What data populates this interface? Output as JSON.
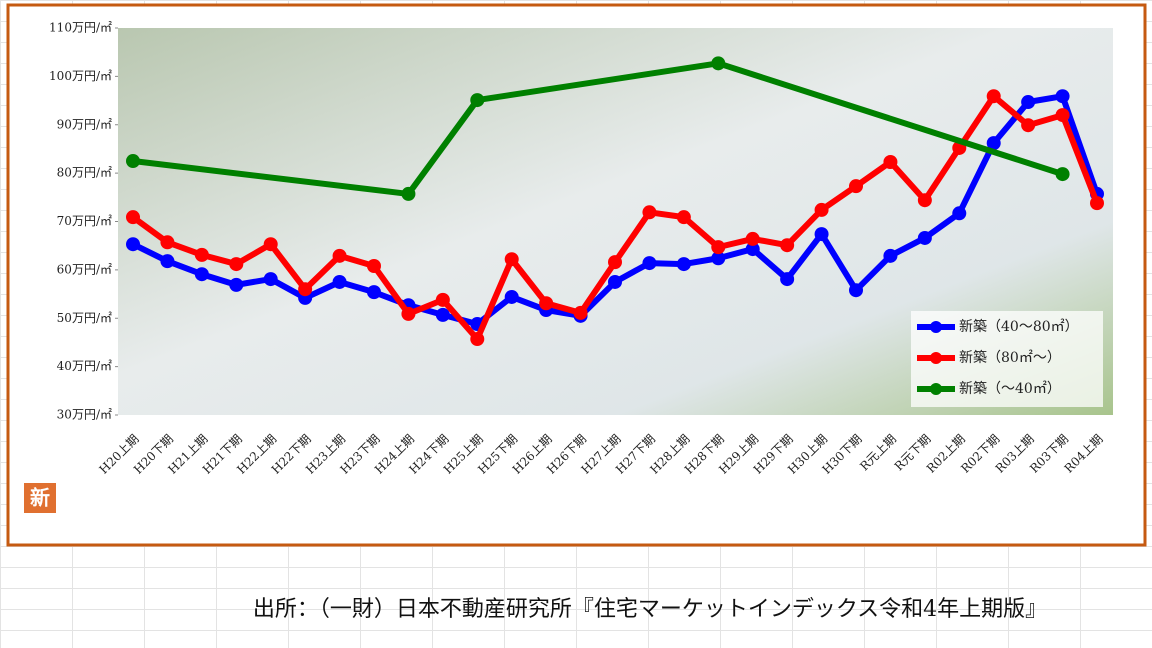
{
  "chart_data": {
    "type": "line",
    "categories": [
      "H20上期",
      "H20下期",
      "H21上期",
      "H21下期",
      "H22上期",
      "H22下期",
      "H23上期",
      "H23下期",
      "H24上期",
      "H24下期",
      "H25上期",
      "H25下期",
      "H26上期",
      "H26下期",
      "H27上期",
      "H27下期",
      "H28上期",
      "H28下期",
      "H29上期",
      "H29下期",
      "H30上期",
      "H30下期",
      "R元上期",
      "R元下期",
      "R02上期",
      "R02下期",
      "R03上期",
      "R03下期",
      "R04上期"
    ],
    "series": [
      {
        "name": "新築（40～80㎡）",
        "color": "#0000ff",
        "values": [
          65.3,
          61.8,
          59.1,
          56.9,
          58.1,
          54.2,
          57.5,
          55.4,
          52.7,
          50.7,
          48.8,
          54.4,
          51.7,
          50.5,
          57.5,
          61.4,
          61.2,
          62.4,
          64.3,
          58.1,
          67.4,
          55.8,
          62.9,
          66.6,
          71.7,
          86.2,
          94.7,
          95.9,
          75.7
        ]
      },
      {
        "name": "新築（80㎡～）",
        "color": "#ff0000",
        "values": [
          70.9,
          65.7,
          63.1,
          61.2,
          65.3,
          56.0,
          62.9,
          60.8,
          50.9,
          53.8,
          45.7,
          62.2,
          53.1,
          51.1,
          61.6,
          71.9,
          70.9,
          64.7,
          66.4,
          65.1,
          72.4,
          77.3,
          82.3,
          74.4,
          85.2,
          95.9,
          89.9,
          92.0,
          73.8
        ]
      },
      {
        "name": "新築（～40㎡）",
        "color": "#008000",
        "values": [
          82.5,
          null,
          null,
          null,
          null,
          null,
          null,
          null,
          75.7,
          null,
          95.1,
          null,
          null,
          null,
          null,
          null,
          null,
          102.7,
          null,
          null,
          null,
          null,
          null,
          null,
          null,
          null,
          null,
          79.8,
          null
        ]
      }
    ],
    "span_gaps": true,
    "ylim": [
      30,
      110
    ],
    "yticks": [
      {
        "value": 30,
        "label": "30万円/㎡"
      },
      {
        "value": 40,
        "label": "40万円/㎡"
      },
      {
        "value": 50,
        "label": "50万円/㎡"
      },
      {
        "value": 60,
        "label": "60万円/㎡"
      },
      {
        "value": 70,
        "label": "70万円/㎡"
      },
      {
        "value": 80,
        "label": "80万円/㎡"
      },
      {
        "value": 90,
        "label": "90万円/㎡"
      },
      {
        "value": 100,
        "label": "100万円/㎡"
      },
      {
        "value": 110,
        "label": "110万円/㎡"
      }
    ],
    "legend": "lower right",
    "badge": "新",
    "source": "出所：（一財）日本不動産研究所『住宅マーケットインデックス令和4年上期版』"
  }
}
